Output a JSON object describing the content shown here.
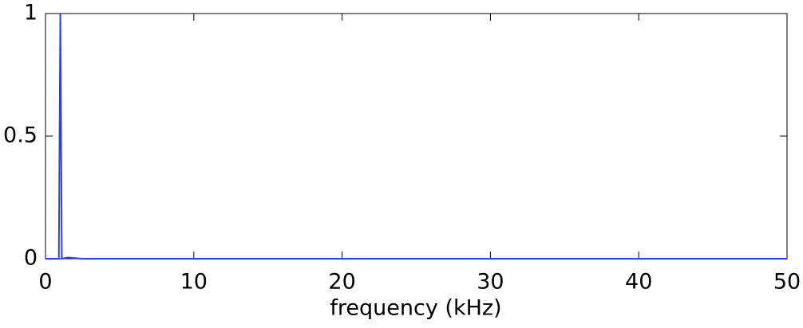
{
  "chart_data": {
    "type": "line",
    "xlabel": "frequency (kHz)",
    "x": [
      0,
      0.9,
      1,
      1.1,
      1.5,
      2.5,
      50
    ],
    "series": [
      {
        "color": "#2a3ff5",
        "values": [
          0,
          0,
          1,
          0,
          0.005,
          0,
          0
        ]
      }
    ],
    "xlim": [
      0,
      50
    ],
    "xticks": [
      0,
      10,
      20,
      30,
      40,
      50
    ],
    "ylim": [
      0,
      1
    ],
    "yticks": [
      0,
      0.5,
      1
    ],
    "grid": false
  }
}
